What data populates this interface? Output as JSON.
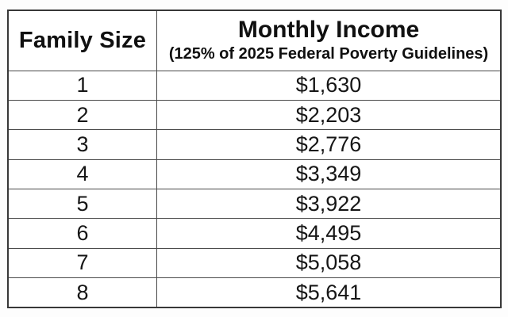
{
  "table": {
    "columns": [
      {
        "label": "Family Size"
      },
      {
        "label": "Monthly Income",
        "sublabel": "(125% of 2025 Federal Poverty Guidelines)"
      }
    ],
    "rows": [
      {
        "family_size": "1",
        "income": "$1,630"
      },
      {
        "family_size": "2",
        "income": "$2,203"
      },
      {
        "family_size": "3",
        "income": "$2,776"
      },
      {
        "family_size": "4",
        "income": "$3,349"
      },
      {
        "family_size": "5",
        "income": "$3,922"
      },
      {
        "family_size": "6",
        "income": "$4,495"
      },
      {
        "family_size": "7",
        "income": "$5,058"
      },
      {
        "family_size": "8",
        "income": "$5,641"
      }
    ]
  },
  "colors": {
    "border_outer": "#383838",
    "border_inner": "#4a4a4a",
    "text": "#141414",
    "background": "#ffffff"
  },
  "chart_data": {
    "type": "table",
    "title": "Monthly Income (125% of 2025 Federal Poverty Guidelines) by Family Size",
    "columns": [
      "Family Size",
      "Monthly Income (125% of 2025 Federal Poverty Guidelines)"
    ],
    "rows": [
      [
        1,
        "$1,630"
      ],
      [
        2,
        "$2,203"
      ],
      [
        3,
        "$2,776"
      ],
      [
        4,
        "$3,349"
      ],
      [
        5,
        "$3,922"
      ],
      [
        6,
        "$4,495"
      ],
      [
        7,
        "$5,058"
      ],
      [
        8,
        "$5,641"
      ]
    ]
  }
}
